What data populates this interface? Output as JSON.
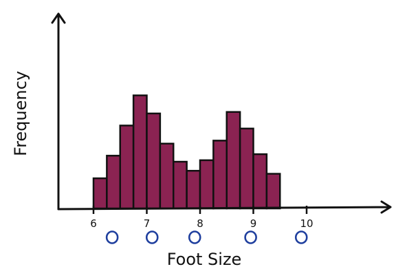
{
  "chart_data": {
    "type": "bar",
    "xlabel": "Foot Size",
    "ylabel": "Frequency",
    "x_ticks": [
      "6",
      "7",
      "8",
      "9",
      "10"
    ],
    "xlim": [
      6,
      10
    ],
    "bin_width": 0.25,
    "bins": [
      {
        "x0": 6.0,
        "value": 2.0
      },
      {
        "x0": 6.25,
        "value": 3.5
      },
      {
        "x0": 6.5,
        "value": 5.5
      },
      {
        "x0": 6.75,
        "value": 7.5
      },
      {
        "x0": 7.0,
        "value": 6.3
      },
      {
        "x0": 7.25,
        "value": 4.3
      },
      {
        "x0": 7.5,
        "value": 3.1
      },
      {
        "x0": 7.75,
        "value": 2.5
      },
      {
        "x0": 8.0,
        "value": 3.2
      },
      {
        "x0": 8.25,
        "value": 4.5
      },
      {
        "x0": 8.5,
        "value": 6.4
      },
      {
        "x0": 8.75,
        "value": 5.3
      },
      {
        "x0": 9.0,
        "value": 3.6
      },
      {
        "x0": 9.25,
        "value": 2.3
      }
    ],
    "ylim": [
      0,
      12
    ],
    "markers_x": [
      6.35,
      7.1,
      7.9,
      8.95,
      9.9
    ],
    "grid": false,
    "colors": {
      "bar_fill": "#8b2352",
      "marker": "#1f3f9e",
      "axis": "#111111"
    }
  }
}
